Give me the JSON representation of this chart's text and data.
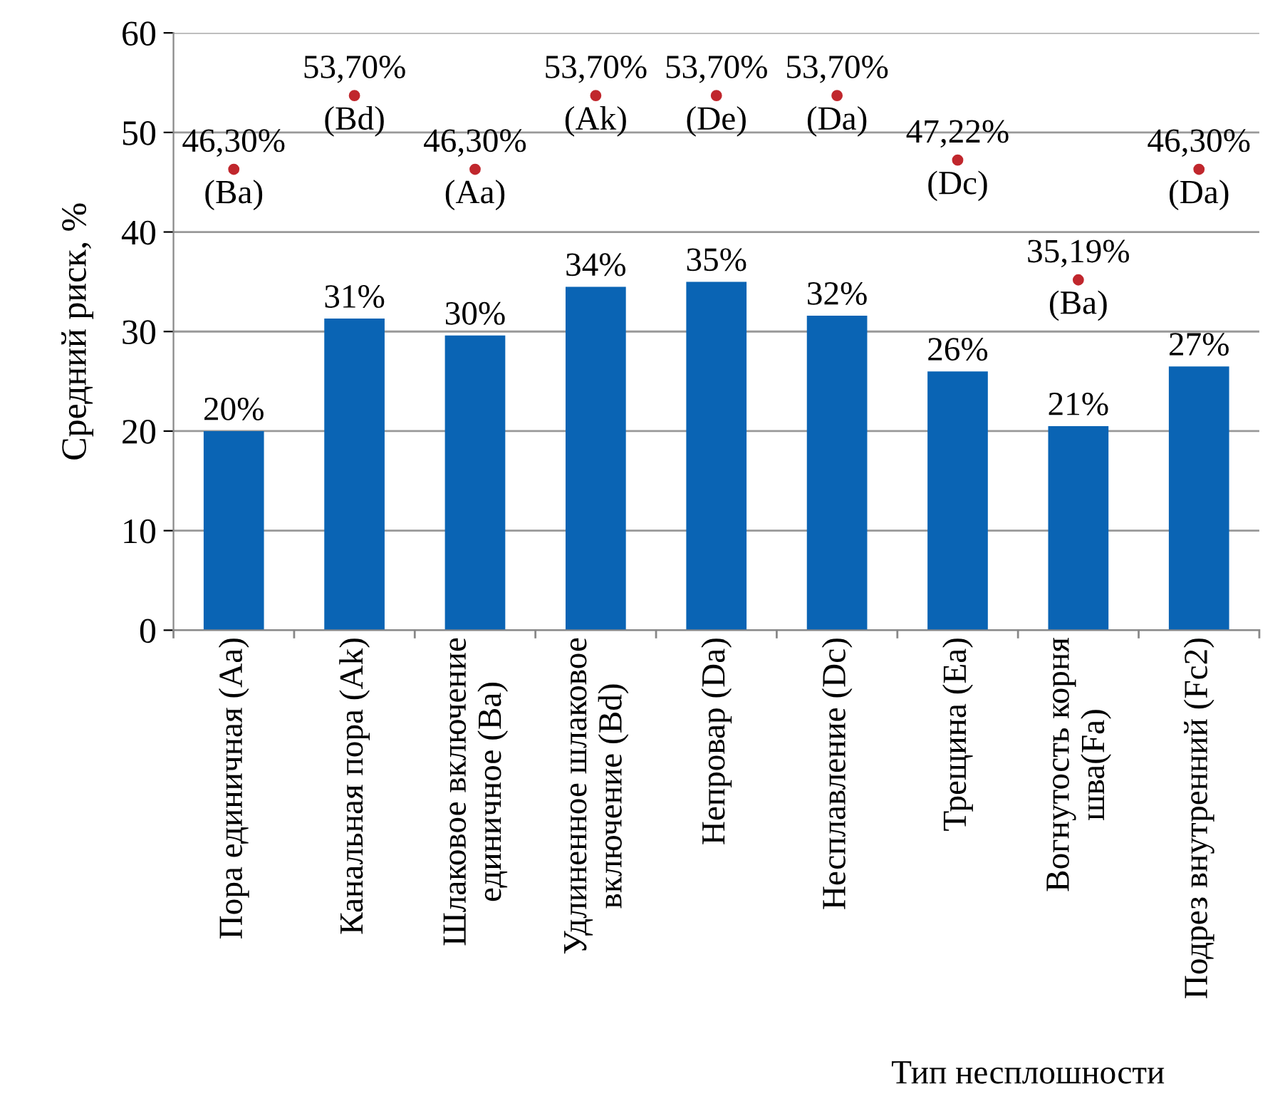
{
  "chart_data": {
    "type": "bar",
    "ylabel": "Средний риск, %",
    "xlabel": "Тип несплошности",
    "categories": [
      "Пора единичная (Aa)",
      "Канальная пора (Ak)",
      "Шлаковое включение\nединичное (Ba)",
      "Удлиненное шлаковое\nвключение (Bd)",
      "Непровар (Da)",
      "Несплавление (Dc)",
      "Трещина (Ea)",
      "Вогнутость корня\nшва(Fa)",
      "Подрез внутренний (Fc2)"
    ],
    "series": [
      {
        "color": "#0a64b4",
        "values": [
          20,
          31.3,
          29.6,
          34.5,
          35,
          31.6,
          26,
          20.5,
          26.5
        ],
        "value_labels": [
          "20%",
          "31%",
          "30%",
          "34%",
          "35%",
          "32%",
          "26%",
          "21%",
          "27%"
        ]
      },
      {
        "type": "scatter",
        "color": "#c0272d",
        "values": [
          46.3,
          53.7,
          46.3,
          53.7,
          53.7,
          53.7,
          47.22,
          35.19,
          46.3
        ],
        "value_labels": [
          "46,30%\n(Ba)",
          "53,70%\n(Bd)",
          "46,30%\n(Aa)",
          "53,70%\n(Ak)",
          "53,70%\n(De)",
          "53,70%\n(Da)",
          "47,22%\n(Dc)",
          "35,19%\n(Ba)",
          "46,30%\n(Da)"
        ]
      }
    ],
    "ylim": [
      0,
      60
    ],
    "yticks": [
      0,
      10,
      20,
      30,
      40,
      50,
      60
    ],
    "grid": "y",
    "marker": "circle"
  }
}
